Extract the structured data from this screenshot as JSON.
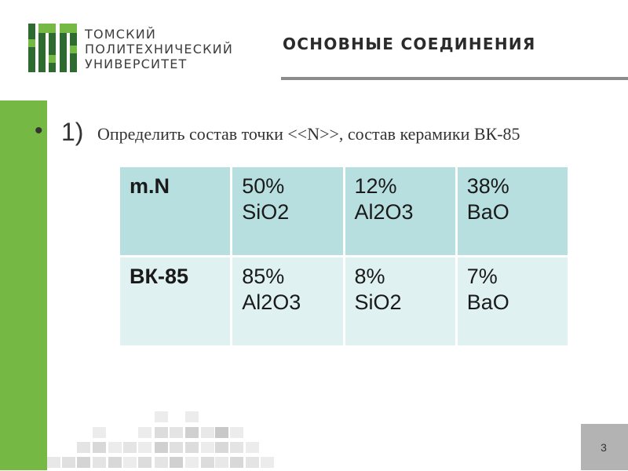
{
  "header": {
    "logo_lines": [
      "ТОМСКИЙ",
      "ПОЛИТЕХНИЧЕСКИЙ",
      "УНИВЕРСИТЕТ"
    ],
    "title": "ОСНОВНЫЕ СОЕДИНЕНИЯ"
  },
  "content": {
    "bullet": "•",
    "item_number": "1)",
    "item_text": "Определить состав точки <<N>>, состав керамики ВК-85"
  },
  "table": {
    "rows": [
      {
        "label": "m.N",
        "cells": [
          {
            "percent": "50%",
            "compound": "SiO2"
          },
          {
            "percent": "12%",
            "compound": "Al2O3"
          },
          {
            "percent": "38%",
            "compound": "BaO"
          }
        ]
      },
      {
        "label": "ВК-85",
        "cells": [
          {
            "percent": "85%",
            "compound": "Al2O3"
          },
          {
            "percent": "8%",
            "compound": "SiO2"
          },
          {
            "percent": "7%",
            "compound": "BaO"
          }
        ]
      }
    ]
  },
  "footer": {
    "page_number": "3"
  },
  "colors": {
    "accent_green": "#75b843",
    "dark_green": "#2e6b30",
    "table_row1": "#b7dfe0",
    "table_row2": "#dff1f1",
    "rule_gray": "#8c8c8c"
  }
}
